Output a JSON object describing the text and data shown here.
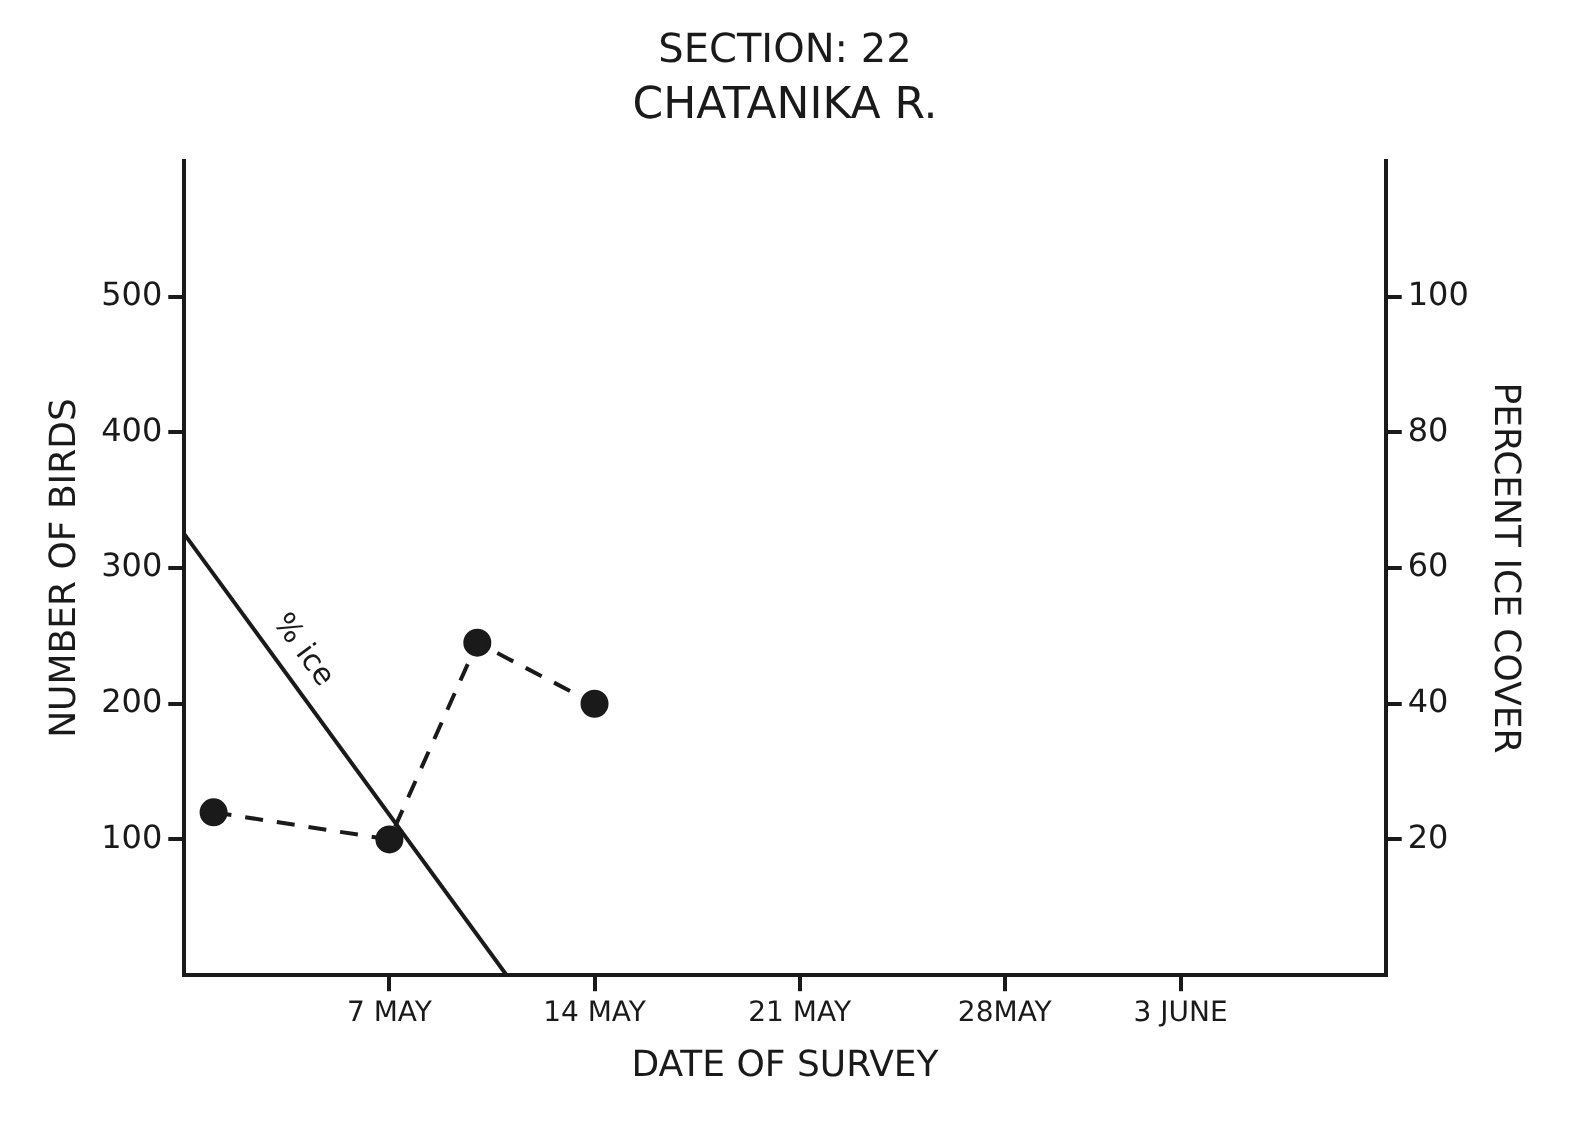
{
  "chart_data": {
    "type": "line",
    "title": "SECTION: 22",
    "subtitle": "CHATANIKA R.",
    "xlabel": "DATE OF SURVEY",
    "ylabel": "NUMBER OF BIRDS",
    "y2label": "PERCENT ICE COVER",
    "series": [
      {
        "color": "#1a1a1a",
        "x": [
          "--05-01",
          "--05-07",
          "--05-10",
          "--05-14"
        ],
        "values": [
          120,
          100,
          245,
          200
        ],
        "marker": "circle",
        "line_style": "dashed"
      },
      {
        "color": "#1a1a1a",
        "axis": "y2",
        "x": [
          "--04-30",
          "--05-11"
        ],
        "values": [
          65,
          0
        ],
        "marker": "none",
        "line_style": "solid"
      }
    ],
    "annotations": [
      "% ice"
    ],
    "xlim": [
      "--04-30",
      "--06-10"
    ],
    "xticks": [
      {
        "value": "--05-07",
        "label": "7 MAY"
      },
      {
        "value": "--05-14",
        "label": "14 MAY"
      },
      {
        "value": "--05-21",
        "label": "21 MAY"
      },
      {
        "value": "--05-28",
        "label": "28MAY"
      },
      {
        "value": "--06-03",
        "label": "3 JUNE"
      }
    ],
    "ylim": [
      0,
      600
    ],
    "yticks": [
      100,
      200,
      300,
      400,
      500
    ],
    "y2lim": [
      0,
      120
    ],
    "y2ticks": [
      20,
      40,
      60,
      80,
      100
    ],
    "grid": false,
    "legend": false
  }
}
